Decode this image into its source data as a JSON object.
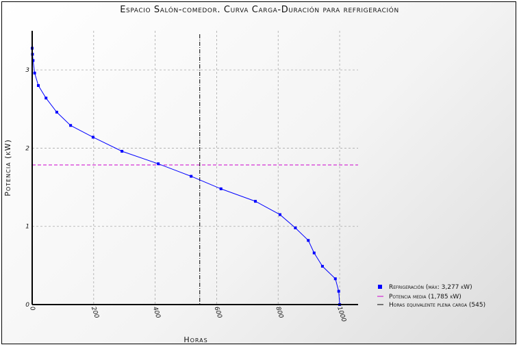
{
  "chart_data": {
    "type": "line",
    "title": "Espacio Salón-comedor. Curva Carga-Duración para refrigeración",
    "xlabel": "Horas",
    "ylabel": "Potencia (kW)",
    "xlim": [
      0,
      1060
    ],
    "ylim": [
      0,
      3.5
    ],
    "x_ticks": [
      0,
      200,
      400,
      600,
      800,
      1000
    ],
    "x_tick_labels": [
      "0",
      "200",
      "400",
      "600",
      "800",
      "1000"
    ],
    "y_ticks": [
      0,
      1,
      2,
      3
    ],
    "y_tick_labels": [
      "0",
      "1",
      "2",
      "3"
    ],
    "grid": true,
    "legend_position": "bottom-right",
    "series": [
      {
        "name": "Refrigeración (máx: 3,277 kW)",
        "color": "#0000ff",
        "marker": "square",
        "x": [
          0,
          1,
          3,
          8,
          20,
          45,
          80,
          125,
          198,
          292,
          410,
          517,
          614,
          726,
          806,
          856,
          898,
          917,
          944,
          986,
          997,
          1000,
          1000
        ],
        "y": [
          3.277,
          3.2,
          3.12,
          2.96,
          2.8,
          2.64,
          2.46,
          2.29,
          2.14,
          1.96,
          1.8,
          1.64,
          1.48,
          1.32,
          1.15,
          0.98,
          0.82,
          0.66,
          0.49,
          0.33,
          0.17,
          0.0,
          0.0
        ]
      },
      {
        "name": "Potencia media (1,785 kW)",
        "color": "#cc00cc",
        "style": "dashed",
        "y": 1.785
      },
      {
        "name": "Horas equivalente plena carga (545)",
        "color": "#000000",
        "style": "dash-dot",
        "x": 545
      }
    ]
  }
}
